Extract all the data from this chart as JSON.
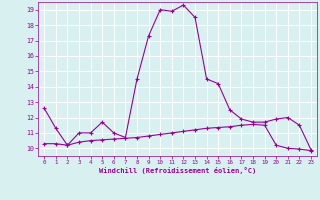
{
  "xlabel": "Windchill (Refroidissement éolien,°C)",
  "line1_x": [
    0,
    1,
    2,
    3,
    4,
    5,
    6,
    7,
    8,
    9,
    10,
    11,
    12,
    13,
    14,
    15,
    16,
    17,
    18,
    19,
    20,
    21,
    22,
    23
  ],
  "line1_y": [
    12.6,
    11.3,
    10.2,
    11.0,
    11.0,
    11.7,
    11.0,
    10.7,
    14.5,
    17.3,
    19.0,
    18.9,
    19.3,
    18.5,
    14.5,
    14.2,
    12.5,
    11.9,
    11.7,
    11.7,
    11.9,
    12.0,
    11.5,
    9.9
  ],
  "line2_x": [
    0,
    1,
    2,
    3,
    4,
    5,
    6,
    7,
    8,
    9,
    10,
    11,
    12,
    13,
    14,
    15,
    16,
    17,
    18,
    19,
    20,
    21,
    22,
    23
  ],
  "line2_y": [
    10.3,
    10.3,
    10.2,
    10.4,
    10.5,
    10.55,
    10.6,
    10.65,
    10.7,
    10.8,
    10.9,
    11.0,
    11.1,
    11.2,
    11.3,
    11.35,
    11.4,
    11.5,
    11.55,
    11.5,
    10.2,
    10.0,
    9.95,
    9.85
  ],
  "line_color": "#990099",
  "bg_color": "#d8f0f0",
  "grid_color": "#b0d8d8",
  "ylim": [
    9.5,
    19.5
  ],
  "xlim": [
    -0.5,
    23.5
  ],
  "yticks": [
    10,
    11,
    12,
    13,
    14,
    15,
    16,
    17,
    18,
    19
  ],
  "xticks": [
    0,
    1,
    2,
    3,
    4,
    5,
    6,
    7,
    8,
    9,
    10,
    11,
    12,
    13,
    14,
    15,
    16,
    17,
    18,
    19,
    20,
    21,
    22,
    23
  ],
  "marker": "+",
  "markersize": 3,
  "linewidth": 0.8
}
